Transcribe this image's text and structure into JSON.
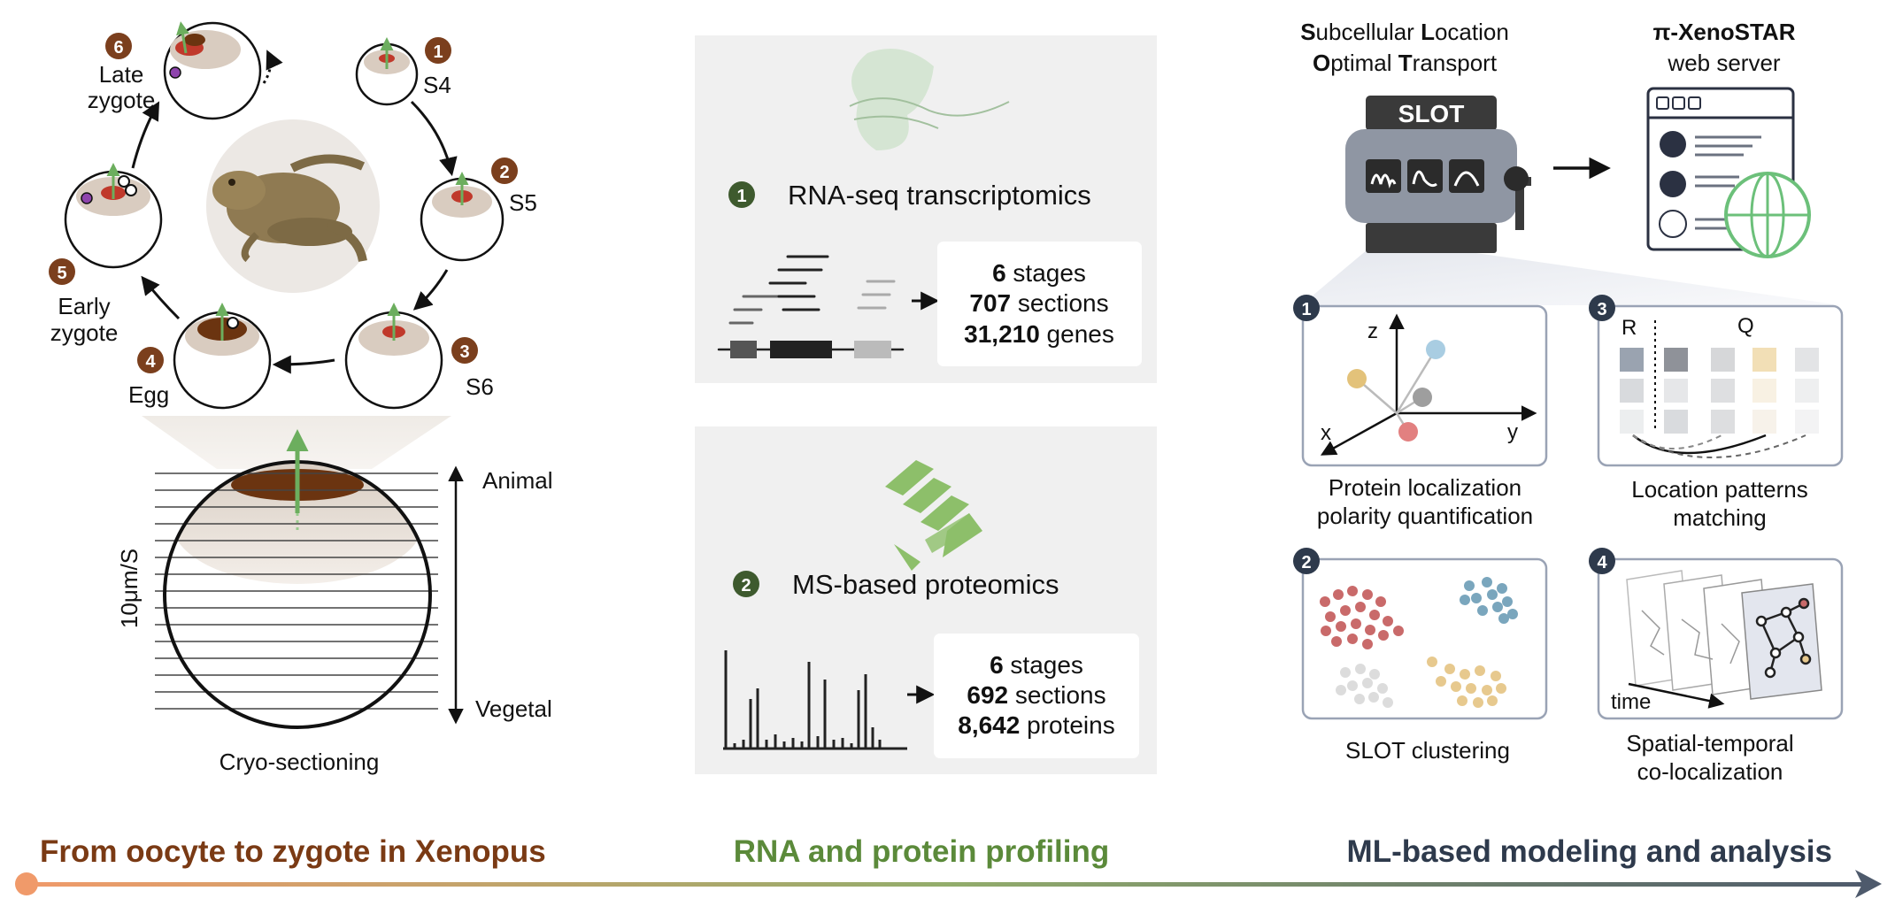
{
  "left": {
    "stages": [
      {
        "num": "1",
        "label": "S4"
      },
      {
        "num": "2",
        "label": "S5"
      },
      {
        "num": "3",
        "label": "S6"
      },
      {
        "num": "4",
        "label": "Egg"
      },
      {
        "num": "5",
        "label_l1": "Early",
        "label_l2": "zygote"
      },
      {
        "num": "6",
        "label_l1": "Late",
        "label_l2": "zygote"
      }
    ],
    "animal_label": "Animal",
    "vegetal_label": "Vegetal",
    "thickness_label": "10μm/S",
    "caption": "Cryo-sectioning"
  },
  "middle": {
    "rna": {
      "num": "1",
      "title": "RNA-seq transcriptomics",
      "stats": [
        {
          "bold": "6",
          "rest": " stages"
        },
        {
          "bold": "707",
          "rest": " sections"
        },
        {
          "bold": "31,210",
          "rest": " genes"
        }
      ]
    },
    "ms": {
      "num": "2",
      "title": "MS-based proteomics",
      "stats": [
        {
          "bold": "6",
          "rest": " stages"
        },
        {
          "bold": "692",
          "rest": " sections"
        },
        {
          "bold": "8,642",
          "rest": " proteins"
        }
      ]
    }
  },
  "right": {
    "slot_title_line1": [
      {
        "b": "S",
        "r": "ubcellular "
      },
      {
        "b": "L",
        "r": "ocation"
      }
    ],
    "slot_title_line2": [
      {
        "b": "O",
        "r": "ptimal "
      },
      {
        "b": "T",
        "r": "ransport"
      }
    ],
    "slot_machine_label": "SLOT",
    "server_title_bold": "π-XenoSTAR",
    "server_title_sub": "web server",
    "modules": [
      {
        "num": "1",
        "caption_l1": "Protein localization",
        "caption_l2": "polarity quantification",
        "axes": {
          "z": "z",
          "x": "x",
          "y": "y"
        }
      },
      {
        "num": "3",
        "caption_l1": "Location patterns",
        "caption_l2": "matching",
        "labels": {
          "r": "R",
          "q": "Q"
        }
      },
      {
        "num": "2",
        "caption_l1": "SLOT clustering"
      },
      {
        "num": "4",
        "caption_l1": "Spatial-temporal",
        "caption_l2": "co-localization",
        "time_label": "time"
      }
    ]
  },
  "footer": {
    "left": "From oocyte to zygote in Xenopus",
    "middle": "RNA and protein profiling",
    "right": "ML-based modeling and analysis",
    "colors": {
      "left": "#7a3a14",
      "middle": "#5b8a3a",
      "right": "#2e3a4c"
    }
  },
  "colors": {
    "stage_badge": "#7b3f1d",
    "omics_badge": "#3e5a2e",
    "module_badge": "#2e3a4c",
    "arrow_green": "#6cae5e",
    "pigment": "#6b3410"
  }
}
